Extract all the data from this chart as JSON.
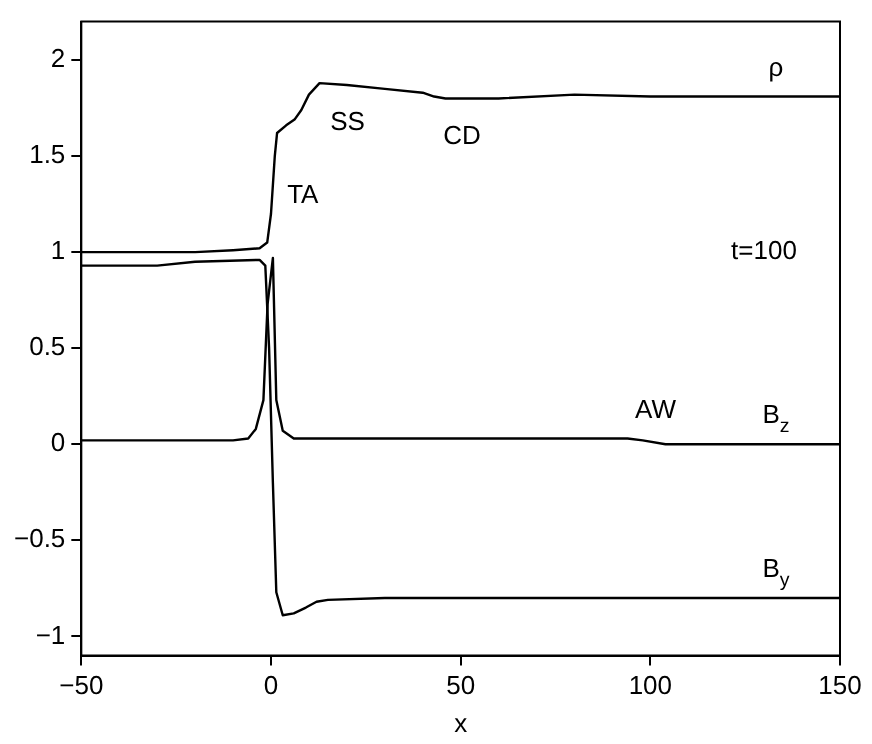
{
  "chart_data": {
    "type": "line",
    "xlabel": "x",
    "xlim": [
      -50,
      150
    ],
    "xticks": [
      -50,
      0,
      50,
      100,
      150
    ],
    "ylim": [
      -1.1,
      2.2
    ],
    "yticks": [
      -1,
      -0.5,
      0,
      0.5,
      1,
      1.5,
      2
    ],
    "grid": false,
    "legend": false,
    "marker": "none",
    "line_style": "solid",
    "annotations": [
      {
        "text": "TA",
        "x": 1,
        "y": 1.5
      },
      {
        "text": "SS",
        "x": 12.8,
        "y": 1.88
      },
      {
        "text": "CD",
        "x": 43,
        "y": 1.81
      },
      {
        "text": "AW",
        "x": 94,
        "y": 0.03
      },
      "t=100"
    ],
    "series": [
      {
        "name": "ρ",
        "color": "#000000",
        "x": [
          -50,
          -30,
          -20,
          -10,
          -3,
          -1,
          0,
          1,
          1.6,
          4,
          6.2,
          8,
          10,
          12.8,
          20,
          30,
          40,
          43,
          46,
          60,
          80,
          100,
          150
        ],
        "values": [
          1.0,
          1.0,
          1.0,
          1.01,
          1.02,
          1.05,
          1.2,
          1.5,
          1.62,
          1.66,
          1.69,
          1.74,
          1.82,
          1.88,
          1.87,
          1.85,
          1.83,
          1.81,
          1.8,
          1.8,
          1.82,
          1.81,
          1.81
        ]
      },
      {
        "name": "B$_{z}$",
        "color": "#000000",
        "x": [
          -50,
          -10,
          -6,
          -4,
          -2,
          -0.9,
          0.5,
          1.4,
          3.1,
          6,
          90,
          94,
          98,
          104,
          150
        ],
        "values": [
          0.02,
          0.02,
          0.03,
          0.08,
          0.23,
          0.73,
          0.97,
          0.23,
          0.07,
          0.03,
          0.03,
          0.03,
          0.02,
          0,
          0
        ]
      },
      {
        "name": "B$_{y}$",
        "color": "#000000",
        "x": [
          -50,
          -30,
          -20,
          -3,
          -1.5,
          -0.5,
          0.5,
          1.4,
          3.1,
          6,
          9.2,
          12,
          15,
          30,
          150
        ],
        "values": [
          0.93,
          0.93,
          0.95,
          0.96,
          0.93,
          0.5,
          -0.2,
          -0.77,
          -0.89,
          -0.88,
          -0.85,
          -0.82,
          -0.81,
          -0.8,
          -0.8
        ]
      }
    ]
  }
}
